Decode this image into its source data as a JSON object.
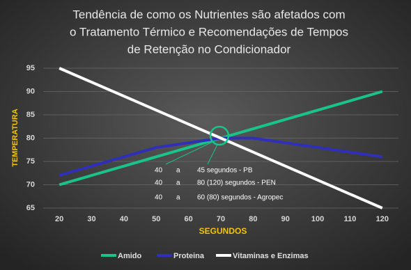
{
  "chart_data": {
    "type": "line",
    "title_lines": [
      "Tendência de como os Nutrientes são afetados com",
      "o Tratamento Térmico e Recomendações de Tempos",
      "de Retenção no Condicionador"
    ],
    "x_label": "SEGUNDOS",
    "y_label": "TEMPERATURA",
    "x": [
      20,
      30,
      40,
      50,
      60,
      70,
      80,
      90,
      100,
      110,
      120
    ],
    "series": [
      {
        "name": "Amido",
        "color": "#19c38a",
        "values": [
          70,
          72,
          74,
          76,
          78,
          80,
          82,
          84,
          86,
          88,
          90
        ]
      },
      {
        "name": "Proteina",
        "color": "#2f2fb8",
        "values": [
          72,
          74,
          76,
          78,
          79,
          80,
          80,
          79,
          78,
          77,
          76
        ]
      },
      {
        "name": "Vitaminas e Enzimas",
        "color": "#ffffff",
        "values": [
          95,
          92,
          89,
          86,
          83,
          80,
          77,
          74,
          71,
          68,
          65
        ]
      }
    ],
    "xlim": [
      15,
      125
    ],
    "ylim": [
      65,
      95
    ],
    "xticks": [
      20,
      30,
      40,
      50,
      60,
      70,
      80,
      90,
      100,
      110,
      120
    ],
    "yticks": [
      65,
      70,
      75,
      80,
      85,
      90,
      95
    ],
    "grid": true,
    "annotations": [
      [
        "40",
        "a",
        "45 segundos - PB"
      ],
      [
        "40",
        "a",
        "80 (120) segundos - PEN"
      ],
      [
        "40",
        "a",
        "60 (80) segundos - Agropec"
      ]
    ]
  }
}
